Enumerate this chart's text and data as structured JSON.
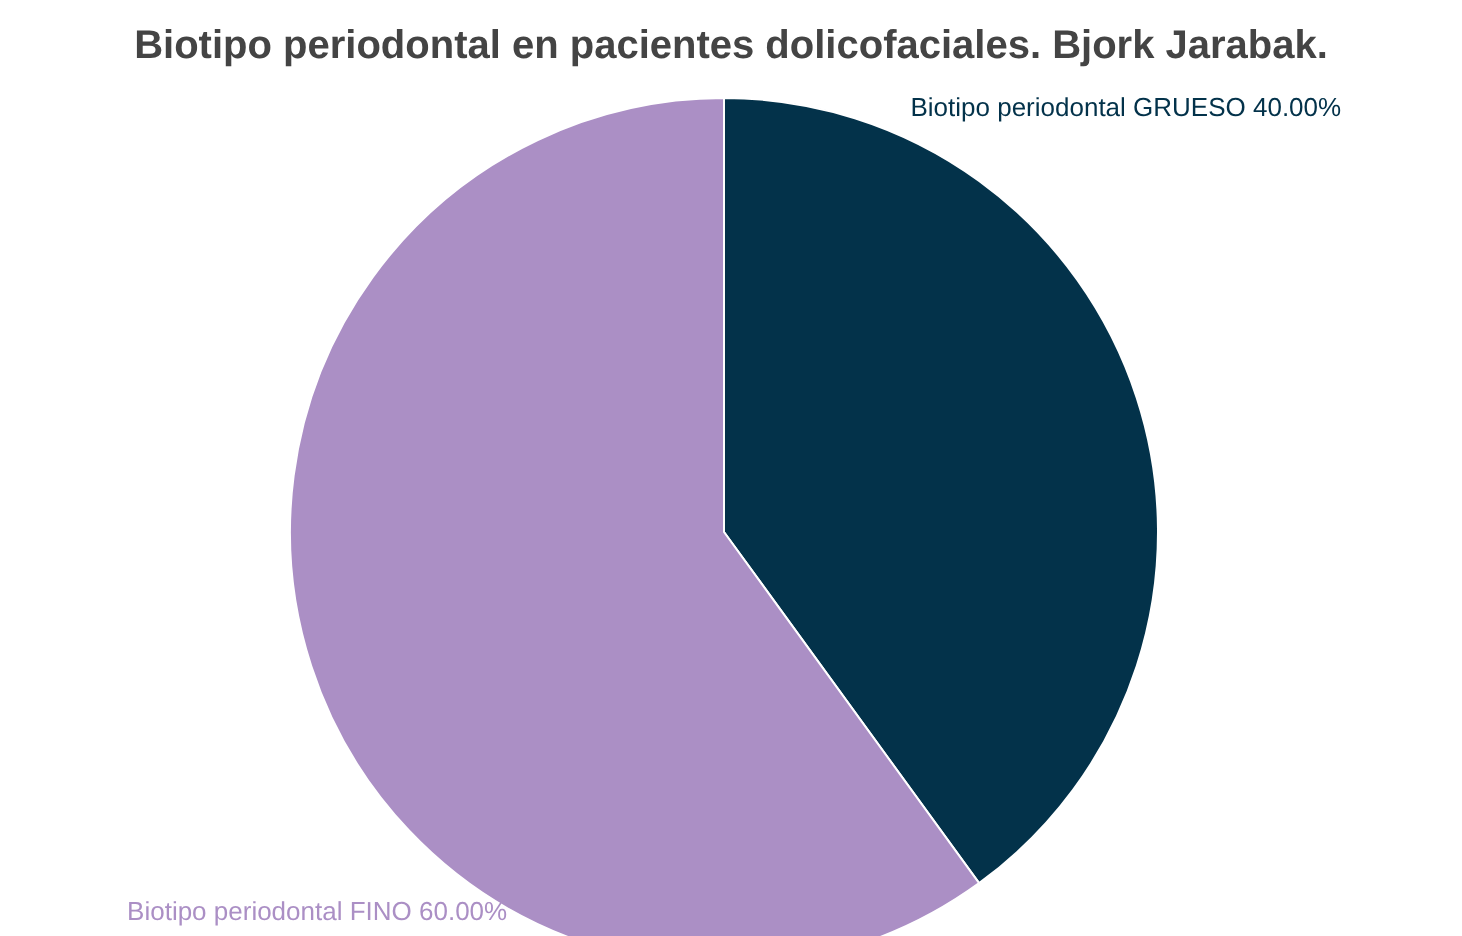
{
  "chart_data": {
    "type": "pie",
    "title": "Biotipo periodontal en pacientes dolicofaciales. Bjork Jarabak.",
    "categories": [
      "Biotipo periodontal GRUESO",
      "Biotipo periodontal FINO"
    ],
    "values": [
      40,
      60
    ],
    "colors": [
      "#03324a",
      "#ab8fc5"
    ],
    "value_labels": [
      "40.00%",
      "60.00%"
    ],
    "legend": false
  }
}
